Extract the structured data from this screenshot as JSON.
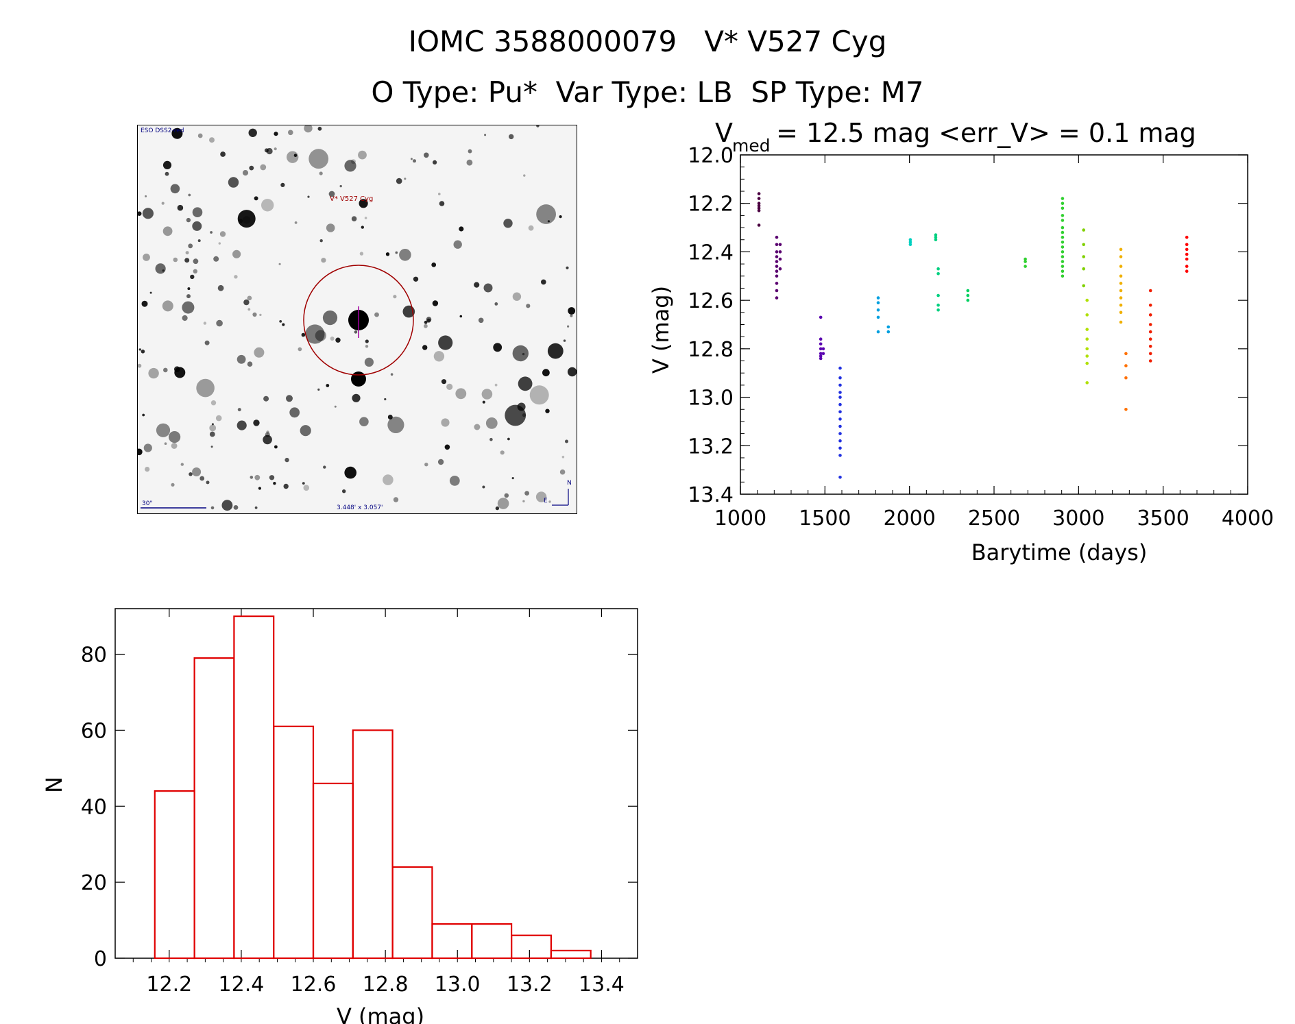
{
  "header": {
    "line1": "IOMC 3588000079   V* V527 Cyg",
    "line2": "O Type: Pu*  Var Type: LB  SP Type: M7"
  },
  "image": {
    "survey": "ESO DSS2-red",
    "target_label": "V* V527 Cyg",
    "scale_label": "30\"",
    "size_label": "3.448' x 3.057'",
    "north": "N",
    "east": "E"
  },
  "colors": {
    "axis": "#000000",
    "histogram": "#e00000",
    "circle": "#a00000"
  },
  "chart_data": [
    {
      "type": "scatter",
      "title_prefix": "V",
      "title_sub": "med",
      "title_rest": " = 12.5 mag <err_V> = 0.1 mag",
      "xlabel": "Barytime (days)",
      "ylabel": "V (mag)",
      "xlim": [
        1000,
        4000
      ],
      "ylim": [
        13.4,
        12.0
      ],
      "y_inverted": true,
      "xticks": [
        1000,
        1500,
        2000,
        2500,
        3000,
        3500,
        4000
      ],
      "yticks": [
        12.0,
        12.2,
        12.4,
        12.6,
        12.8,
        13.0,
        13.2,
        13.4
      ],
      "groups": [
        {
          "x": 1110,
          "color": "#4a0040",
          "y": [
            12.16,
            12.18,
            12.2,
            12.21,
            12.22,
            12.23,
            12.29
          ]
        },
        {
          "x": 1215,
          "color": "#5a0070",
          "y": [
            12.34,
            12.37,
            12.4,
            12.42,
            12.44,
            12.46,
            12.48,
            12.5,
            12.53,
            12.56,
            12.59
          ]
        },
        {
          "x": 1235,
          "color": "#5a0070",
          "y": [
            12.37,
            12.4,
            12.43,
            12.47
          ]
        },
        {
          "x": 1475,
          "color": "#5a00b0",
          "y": [
            12.67,
            12.76,
            12.78,
            12.8,
            12.82,
            12.83,
            12.84
          ]
        },
        {
          "x": 1490,
          "color": "#5a00b0",
          "y": [
            12.8,
            12.82
          ]
        },
        {
          "x": 1590,
          "color": "#2030e0",
          "y": [
            12.88,
            12.92,
            12.95,
            12.98,
            13.0,
            13.03,
            13.06,
            13.09,
            13.12,
            13.15,
            13.18,
            13.21,
            13.24,
            13.33
          ]
        },
        {
          "x": 1815,
          "color": "#00a0e0",
          "y": [
            12.59,
            12.61,
            12.64,
            12.67,
            12.73
          ]
        },
        {
          "x": 1875,
          "color": "#00a0e0",
          "y": [
            12.71,
            12.73
          ]
        },
        {
          "x": 2005,
          "color": "#00d0c0",
          "y": [
            12.35,
            12.36,
            12.37
          ]
        },
        {
          "x": 2155,
          "color": "#00d080",
          "y": [
            12.33,
            12.34,
            12.35
          ]
        },
        {
          "x": 2170,
          "color": "#00d080",
          "y": [
            12.47,
            12.49,
            12.58,
            12.62,
            12.64
          ]
        },
        {
          "x": 2345,
          "color": "#00d060",
          "y": [
            12.56,
            12.58,
            12.6
          ]
        },
        {
          "x": 2685,
          "color": "#30d030",
          "y": [
            12.43,
            12.44,
            12.46
          ]
        },
        {
          "x": 2905,
          "color": "#30d030",
          "y": [
            12.18,
            12.2,
            12.22,
            12.25,
            12.27,
            12.3,
            12.32,
            12.34,
            12.36,
            12.38,
            12.4,
            12.42,
            12.44,
            12.46,
            12.48,
            12.5
          ]
        },
        {
          "x": 3030,
          "color": "#80d000",
          "y": [
            12.31,
            12.37,
            12.42,
            12.47,
            12.54
          ]
        },
        {
          "x": 3050,
          "color": "#b0e000",
          "y": [
            12.6,
            12.66,
            12.72,
            12.76,
            12.8,
            12.83,
            12.86,
            12.94
          ]
        },
        {
          "x": 3250,
          "color": "#f0b000",
          "y": [
            12.39,
            12.42,
            12.46,
            12.5,
            12.53,
            12.56,
            12.59,
            12.62,
            12.65,
            12.69
          ]
        },
        {
          "x": 3280,
          "color": "#ff7000",
          "y": [
            12.82,
            12.87,
            12.92,
            13.05
          ]
        },
        {
          "x": 3425,
          "color": "#f02000",
          "y": [
            12.56,
            12.62,
            12.66,
            12.7,
            12.73,
            12.76,
            12.79,
            12.82,
            12.85
          ]
        },
        {
          "x": 3640,
          "color": "#ff0000",
          "y": [
            12.34,
            12.37,
            12.39,
            12.41,
            12.43,
            12.46,
            12.48
          ]
        }
      ]
    },
    {
      "type": "bar",
      "xlabel": "V (mag)",
      "ylabel": "N",
      "xlim": [
        12.05,
        13.5
      ],
      "ylim": [
        0,
        92
      ],
      "xticks": [
        12.2,
        12.4,
        12.6,
        12.8,
        13.0,
        13.2,
        13.4
      ],
      "yticks": [
        0,
        20,
        40,
        60,
        80
      ],
      "bin_edges": [
        12.16,
        12.27,
        12.38,
        12.49,
        12.6,
        12.71,
        12.82,
        12.93,
        13.04,
        13.15,
        13.26,
        13.37
      ],
      "values": [
        44,
        79,
        90,
        61,
        46,
        60,
        24,
        9,
        9,
        6,
        2
      ]
    }
  ]
}
